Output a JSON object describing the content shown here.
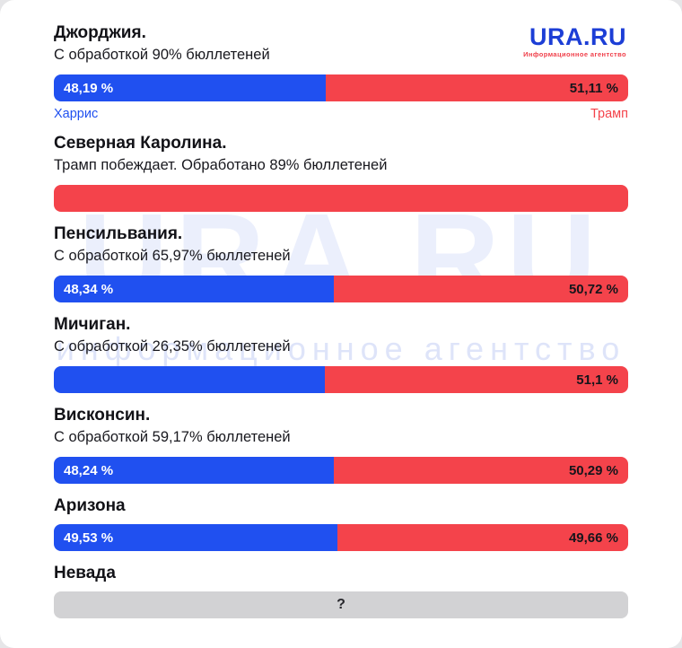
{
  "logo": {
    "title": "URA.RU",
    "subtitle": "Информационное агентство"
  },
  "watermark": {
    "line1": "URA.RU",
    "line2": "информационное агентство"
  },
  "legend": {
    "harris": "Харрис",
    "trump": "Трамп"
  },
  "colors": {
    "blue": "#2050f0",
    "red": "#f4434b",
    "gray": "#d2d2d4",
    "logo-blue": "#1c3ed6",
    "logo-red": "#f0404b"
  },
  "states": [
    {
      "name": "Джорджия.",
      "subtitle": "С обработкой 90% бюллетеней",
      "harris_label": "48,19 %",
      "trump_label": "51,11 %",
      "left_share_pct": 47.4
    },
    {
      "name": "Северная Каролина.",
      "subtitle": "Трамп побеждает. Обработано 89% бюллетеней"
    },
    {
      "name": "Пенсильвания.",
      "subtitle": "С обработкой 65,97% бюллетеней",
      "harris_label": "48,34 %",
      "trump_label": "50,72 %",
      "left_share_pct": 48.7
    },
    {
      "name": "Мичиган.",
      "subtitle": "С обработкой 26,35% бюллетеней",
      "harris_label": "",
      "trump_label": "51,1 %",
      "left_share_pct": 47.2
    },
    {
      "name": "Висконсин.",
      "subtitle": "С обработкой 59,17% бюллетеней",
      "harris_label": "48,24 %",
      "trump_label": "50,29 %",
      "left_share_pct": 48.7
    },
    {
      "name": "Аризона",
      "harris_label": "49,53 %",
      "trump_label": "49,66 %",
      "left_share_pct": 49.3
    },
    {
      "name": "Невада",
      "unknown_label": "?"
    }
  ],
  "chart_data": {
    "type": "bar",
    "orientation": "horizontal stacked 100%",
    "title": "Результаты выборов США по штатам: Харрис vs Трамп",
    "categories": [
      "Джорджия",
      "Северная Каролина",
      "Пенсильвания",
      "Мичиган",
      "Висконсин",
      "Аризона",
      "Невада"
    ],
    "series": [
      {
        "name": "Харрис",
        "color": "#2050f0",
        "values": [
          48.19,
          null,
          48.34,
          null,
          48.24,
          49.53,
          null
        ]
      },
      {
        "name": "Трамп",
        "color": "#f4434b",
        "values": [
          51.11,
          null,
          50.72,
          51.1,
          50.29,
          49.66,
          null
        ]
      }
    ],
    "ballots_processed_pct": [
      90,
      89,
      65.97,
      26.35,
      59.17,
      null,
      null
    ],
    "annotations": [
      "Северная Каролина: Трамп побеждает — полоса полностью красная, без цифр",
      "Невада: серая полоса со знаком вопроса (результат неизвестен)"
    ],
    "legend_position": "под первой полосой (Харрис слева, Трамп справа)"
  }
}
